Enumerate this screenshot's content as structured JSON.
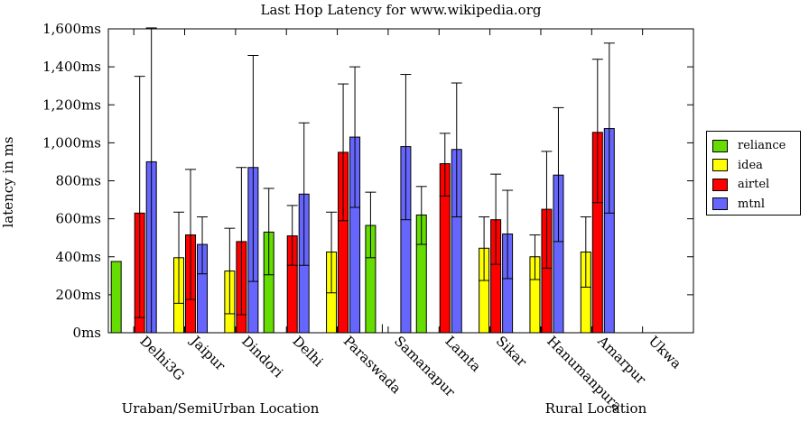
{
  "chart_data": {
    "type": "bar",
    "title": "Last Hop Latency for www.wikipedia.org",
    "ylabel": "latency in ms",
    "ylim": [
      0,
      1600
    ],
    "yticks": [
      "0ms",
      "200ms",
      "400ms",
      "600ms",
      "800ms",
      "1,000ms",
      "1,200ms",
      "1,400ms",
      "1,600ms"
    ],
    "categories": [
      "Delhi3G",
      "Jaipur",
      "Dindori",
      "Delhi",
      "Paraswada",
      "Samanapur",
      "Lamta",
      "Sikar",
      "Hanumanpura",
      "Amarpur",
      "Ukwa"
    ],
    "group_labels": [
      "Uraban/SemiUrban Location",
      "Rural Location"
    ],
    "legend_position": "right",
    "grid": false,
    "series": [
      {
        "name": "reliance",
        "color": "#66dd00",
        "values": [
          375,
          null,
          null,
          530,
          null,
          565,
          620,
          null,
          null,
          null,
          null
        ],
        "err_low": [
          375,
          null,
          null,
          305,
          null,
          395,
          465,
          null,
          null,
          null,
          null
        ],
        "err_high": [
          375,
          null,
          null,
          760,
          null,
          740,
          770,
          null,
          null,
          null,
          null
        ]
      },
      {
        "name": "idea",
        "color": "#ffff00",
        "values": [
          null,
          395,
          325,
          null,
          425,
          null,
          null,
          445,
          400,
          425,
          null
        ],
        "err_low": [
          null,
          155,
          100,
          null,
          210,
          null,
          null,
          275,
          280,
          240,
          null
        ],
        "err_high": [
          null,
          635,
          550,
          null,
          635,
          null,
          null,
          610,
          515,
          610,
          null
        ],
        "thin_marks": [
          null,
          null,
          null,
          null,
          null,
          45,
          null,
          null,
          null,
          null,
          null
        ]
      },
      {
        "name": "airtel",
        "color": "#ff0000",
        "values": [
          630,
          515,
          480,
          510,
          950,
          null,
          890,
          595,
          650,
          1055,
          null
        ],
        "err_low": [
          80,
          175,
          95,
          355,
          590,
          null,
          720,
          360,
          340,
          685,
          null
        ],
        "err_high": [
          1350,
          860,
          870,
          670,
          1310,
          null,
          1050,
          835,
          955,
          1440,
          null
        ]
      },
      {
        "name": "mtnl",
        "color": "#6666ff",
        "values": [
          900,
          465,
          870,
          730,
          1030,
          980,
          965,
          520,
          830,
          1075,
          null
        ],
        "err_low": [
          0,
          310,
          270,
          355,
          660,
          595,
          610,
          285,
          480,
          630,
          null
        ],
        "err_high": [
          1610,
          610,
          1460,
          1105,
          1400,
          1360,
          1315,
          750,
          1185,
          1525,
          null
        ]
      }
    ]
  }
}
